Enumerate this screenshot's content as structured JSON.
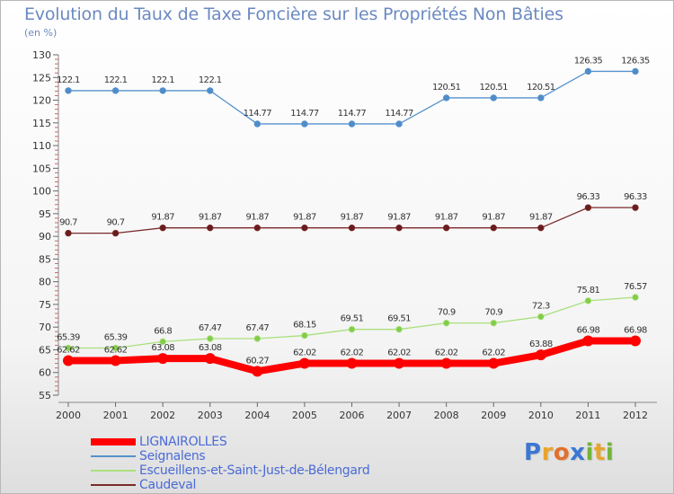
{
  "header": {
    "title": "Evolution du Taux de Taxe Foncière sur les Propriétés Non Bâties",
    "unit": "(en %)"
  },
  "logo": {
    "text": "Proxiti",
    "letters": [
      {
        "ch": "P",
        "color": "#3b77d3"
      },
      {
        "ch": "r",
        "color": "#e8a42c"
      },
      {
        "ch": "o",
        "color": "#e26f2c"
      },
      {
        "ch": "x",
        "color": "#3b77d3"
      },
      {
        "ch": "i",
        "color": "#73b43a"
      },
      {
        "ch": "t",
        "color": "#e8a42c"
      },
      {
        "ch": "i",
        "color": "#73b43a"
      }
    ]
  },
  "chart_data": {
    "type": "line",
    "x": [
      "2000",
      "2001",
      "2002",
      "2003",
      "2004",
      "2005",
      "2006",
      "2007",
      "2008",
      "2009",
      "2010",
      "2011",
      "2012"
    ],
    "ylim": [
      55,
      130
    ],
    "yticks": [
      55,
      60,
      65,
      70,
      75,
      80,
      85,
      90,
      95,
      100,
      105,
      110,
      115,
      120,
      125,
      130
    ],
    "grid": false,
    "legend_position": "bottom-left",
    "series": [
      {
        "name": "LIGNAIROLLES",
        "color": "#ff0000",
        "emphasis": true,
        "values": [
          62.62,
          62.62,
          63.08,
          63.08,
          60.27,
          62.02,
          62.02,
          62.02,
          62.02,
          62.02,
          63.88,
          66.98,
          66.98
        ],
        "labels": [
          "62.62",
          "62.62",
          "63.08",
          "63.08",
          "60.27",
          "62.02",
          "62.02",
          "62.02",
          "62.02",
          "62.02",
          "63.88",
          "66.98",
          "66.98"
        ]
      },
      {
        "name": "Seignalens",
        "color": "#5592cc",
        "marker": "#4f8cc8",
        "values": [
          122.1,
          122.1,
          122.1,
          122.1,
          114.77,
          114.77,
          114.77,
          114.77,
          120.51,
          120.51,
          120.51,
          126.35,
          126.35
        ],
        "labels": [
          "122.1",
          "122.1",
          "122.1",
          "122.1",
          "114.77",
          "114.77",
          "114.77",
          "114.77",
          "120.51",
          "120.51",
          "120.51",
          "126.35",
          "126.35"
        ]
      },
      {
        "name": "Escueillens-et-Saint-Just-de-Bélengard",
        "color": "#a9e07c",
        "marker": "#83cc4a",
        "values": [
          65.39,
          65.39,
          66.8,
          67.47,
          67.47,
          68.15,
          69.51,
          69.51,
          70.9,
          70.9,
          72.3,
          75.81,
          76.57
        ],
        "labels": [
          "65.39",
          "65.39",
          "66.8",
          "67.47",
          "67.47",
          "68.15",
          "69.51",
          "69.51",
          "70.9",
          "70.9",
          "72.3",
          "75.81",
          "76.57"
        ]
      },
      {
        "name": "Caudeval",
        "color": "#7a2a2a",
        "marker": "#6a1c1c",
        "values": [
          90.7,
          90.7,
          91.87,
          91.87,
          91.87,
          91.87,
          91.87,
          91.87,
          91.87,
          91.87,
          91.87,
          96.33,
          96.33
        ],
        "labels": [
          "90.7",
          "90.7",
          "91.87",
          "91.87",
          "91.87",
          "91.87",
          "91.87",
          "91.87",
          "91.87",
          "91.87",
          "91.87",
          "96.33",
          "96.33"
        ]
      }
    ]
  }
}
